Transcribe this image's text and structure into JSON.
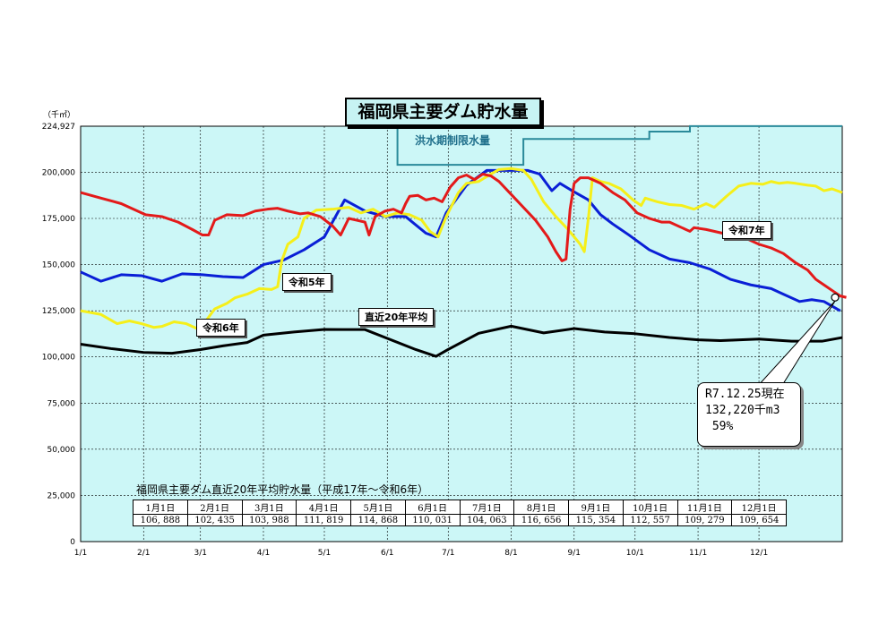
{
  "title": "福岡県主要ダム貯水量",
  "unit_label": "（千㎥）",
  "flood_label": "洪水期制限水量",
  "series_labels": {
    "r7": "令和7年",
    "r5": "令和5年",
    "r6": "令和6年",
    "avg": "直近20年平均"
  },
  "callout": {
    "line1": "R7.12.25現在",
    "line2": "132,220千m3",
    "line3": " 59%"
  },
  "avg_table": {
    "title": "福岡県主要ダム直近20年平均貯水量（平成17年～令和6年）",
    "headers": [
      "1月1日",
      "2月1日",
      "3月1日",
      "4月1日",
      "5月1日",
      "6月1日",
      "7月1日",
      "8月1日",
      "9月1日",
      "10月1日",
      "11月1日",
      "12月1日"
    ],
    "values": [
      "106, 888",
      "102, 435",
      "103, 988",
      "111, 819",
      "114, 868",
      "110, 031",
      "104, 063",
      "116, 656",
      "115, 354",
      "112, 557",
      "109, 279",
      "109, 654"
    ]
  },
  "chart_data": {
    "type": "line",
    "title": "福岡県主要ダム貯水量",
    "ylabel": "（千㎥）",
    "ylim": [
      0,
      224927
    ],
    "y_ticks": [
      "0",
      "25,000",
      "50,000",
      "75,000",
      "100,000",
      "125,000",
      "150,000",
      "175,000",
      "200,000",
      "224,927"
    ],
    "y_tick_values": [
      0,
      25000,
      50000,
      75000,
      100000,
      125000,
      150000,
      175000,
      200000,
      224927
    ],
    "x_ticks": [
      "1/1",
      "2/1",
      "3/1",
      "4/1",
      "5/1",
      "6/1",
      "7/1",
      "8/1",
      "9/1",
      "10/1",
      "11/1",
      "12/1"
    ],
    "x_tick_days": [
      0,
      31,
      59,
      90,
      120,
      151,
      181,
      212,
      243,
      273,
      304,
      334
    ],
    "xlim_days": [
      0,
      375
    ],
    "grid": true,
    "flood_limit": [
      [
        156,
        225000
      ],
      [
        156,
        204000
      ],
      [
        218,
        204000
      ],
      [
        218,
        218000
      ],
      [
        280,
        218000
      ],
      [
        280,
        222000
      ],
      [
        300,
        222000
      ],
      [
        300,
        225000
      ],
      [
        375,
        225000
      ]
    ],
    "series": [
      {
        "name": "令和7年",
        "color": "#e31a1a",
        "points": [
          [
            0,
            189000
          ],
          [
            10,
            186000
          ],
          [
            20,
            183000
          ],
          [
            28,
            179000
          ],
          [
            32,
            177000
          ],
          [
            40,
            176000
          ],
          [
            48,
            173000
          ],
          [
            55,
            169000
          ],
          [
            60,
            166000
          ],
          [
            63,
            166000
          ],
          [
            66,
            174000
          ],
          [
            72,
            177000
          ],
          [
            80,
            176500
          ],
          [
            86,
            179000
          ],
          [
            92,
            180000
          ],
          [
            97,
            180500
          ],
          [
            102,
            179000
          ],
          [
            108,
            177500
          ],
          [
            112,
            178000
          ],
          [
            118,
            176000
          ],
          [
            124,
            171000
          ],
          [
            128,
            166000
          ],
          [
            132,
            175000
          ],
          [
            136,
            174000
          ],
          [
            140,
            173000
          ],
          [
            142,
            166000
          ],
          [
            145,
            176000
          ],
          [
            150,
            179000
          ],
          [
            154,
            180000
          ],
          [
            158,
            178000
          ],
          [
            160,
            183000
          ],
          [
            162,
            187000
          ],
          [
            166,
            187500
          ],
          [
            170,
            185000
          ],
          [
            174,
            186000
          ],
          [
            178,
            184000
          ],
          [
            182,
            192000
          ],
          [
            186,
            197000
          ],
          [
            190,
            198500
          ],
          [
            194,
            196000
          ],
          [
            198,
            199000
          ],
          [
            202,
            198000
          ],
          [
            206,
            195000
          ],
          [
            212,
            188000
          ],
          [
            218,
            181000
          ],
          [
            224,
            174000
          ],
          [
            230,
            165000
          ],
          [
            234,
            157000
          ],
          [
            237,
            152000
          ],
          [
            239,
            153000
          ],
          [
            241,
            180000
          ],
          [
            243,
            194000
          ],
          [
            246,
            197000
          ],
          [
            250,
            197000
          ],
          [
            256,
            194000
          ],
          [
            262,
            189000
          ],
          [
            268,
            185000
          ],
          [
            274,
            178000
          ],
          [
            280,
            175000
          ],
          [
            286,
            173000
          ],
          [
            290,
            173000
          ],
          [
            296,
            170000
          ],
          [
            300,
            168000
          ],
          [
            302,
            170000
          ],
          [
            308,
            169000
          ],
          [
            316,
            167000
          ],
          [
            322,
            165500
          ],
          [
            328,
            164000
          ],
          [
            334,
            161000
          ],
          [
            340,
            159000
          ],
          [
            346,
            156000
          ],
          [
            352,
            151000
          ],
          [
            358,
            147000
          ],
          [
            362,
            142000
          ],
          [
            366,
            139000
          ],
          [
            370,
            136000
          ],
          [
            374,
            133000
          ],
          [
            377,
            132220
          ]
        ]
      },
      {
        "name": "令和5年",
        "color": "#0a1fd6",
        "points": [
          [
            0,
            146000
          ],
          [
            10,
            141000
          ],
          [
            20,
            144500
          ],
          [
            30,
            144000
          ],
          [
            40,
            141000
          ],
          [
            50,
            145000
          ],
          [
            60,
            144500
          ],
          [
            70,
            143500
          ],
          [
            80,
            143000
          ],
          [
            90,
            150000
          ],
          [
            100,
            152500
          ],
          [
            110,
            158000
          ],
          [
            120,
            165000
          ],
          [
            130,
            185000
          ],
          [
            140,
            179000
          ],
          [
            150,
            176000
          ],
          [
            160,
            176000
          ],
          [
            170,
            167000
          ],
          [
            175,
            165000
          ],
          [
            180,
            178000
          ],
          [
            190,
            193000
          ],
          [
            200,
            201000
          ],
          [
            210,
            201000
          ],
          [
            220,
            201000
          ],
          [
            226,
            199000
          ],
          [
            232,
            190000
          ],
          [
            236,
            194000
          ],
          [
            242,
            190000
          ],
          [
            250,
            185000
          ],
          [
            256,
            177000
          ],
          [
            262,
            172000
          ],
          [
            270,
            166000
          ],
          [
            280,
            158000
          ],
          [
            290,
            153000
          ],
          [
            300,
            151000
          ],
          [
            310,
            147500
          ],
          [
            320,
            142000
          ],
          [
            330,
            139000
          ],
          [
            340,
            137000
          ],
          [
            346,
            134000
          ],
          [
            354,
            130000
          ],
          [
            360,
            131000
          ],
          [
            366,
            130000
          ],
          [
            374,
            125000
          ]
        ]
      },
      {
        "name": "令和6年",
        "color": "#f5ef1a",
        "points": [
          [
            0,
            125000
          ],
          [
            10,
            123000
          ],
          [
            18,
            118000
          ],
          [
            24,
            119500
          ],
          [
            30,
            118000
          ],
          [
            36,
            116000
          ],
          [
            40,
            116500
          ],
          [
            46,
            119000
          ],
          [
            52,
            118000
          ],
          [
            58,
            115000
          ],
          [
            60,
            115000
          ],
          [
            62,
            120000
          ],
          [
            66,
            126000
          ],
          [
            72,
            129000
          ],
          [
            76,
            132000
          ],
          [
            82,
            134000
          ],
          [
            88,
            137000
          ],
          [
            94,
            136500
          ],
          [
            97,
            138000
          ],
          [
            99,
            152000
          ],
          [
            102,
            161000
          ],
          [
            107,
            165000
          ],
          [
            110,
            175000
          ],
          [
            116,
            179500
          ],
          [
            124,
            180000
          ],
          [
            132,
            181000
          ],
          [
            138,
            178000
          ],
          [
            144,
            180000
          ],
          [
            150,
            176000
          ],
          [
            156,
            178000
          ],
          [
            162,
            177000
          ],
          [
            168,
            174000
          ],
          [
            172,
            168000
          ],
          [
            176,
            165000
          ],
          [
            180,
            176000
          ],
          [
            186,
            189000
          ],
          [
            190,
            194000
          ],
          [
            196,
            195000
          ],
          [
            202,
            199000
          ],
          [
            206,
            201500
          ],
          [
            212,
            202000
          ],
          [
            218,
            201000
          ],
          [
            222,
            196000
          ],
          [
            228,
            184000
          ],
          [
            234,
            176000
          ],
          [
            240,
            169000
          ],
          [
            246,
            161000
          ],
          [
            248,
            157000
          ],
          [
            250,
            175000
          ],
          [
            252,
            197000
          ],
          [
            256,
            195000
          ],
          [
            260,
            194000
          ],
          [
            266,
            191000
          ],
          [
            272,
            185000
          ],
          [
            276,
            182000
          ],
          [
            278,
            186000
          ],
          [
            284,
            184000
          ],
          [
            290,
            182500
          ],
          [
            296,
            182000
          ],
          [
            302,
            180000
          ],
          [
            308,
            183000
          ],
          [
            312,
            181000
          ],
          [
            318,
            187000
          ],
          [
            324,
            192500
          ],
          [
            330,
            194000
          ],
          [
            336,
            193500
          ],
          [
            340,
            195000
          ],
          [
            344,
            194000
          ],
          [
            348,
            194500
          ],
          [
            352,
            194000
          ],
          [
            358,
            193000
          ],
          [
            362,
            192500
          ],
          [
            366,
            190000
          ],
          [
            370,
            191000
          ],
          [
            375,
            189000
          ]
        ]
      },
      {
        "name": "直近20年平均",
        "color": "#000000",
        "points": [
          [
            0,
            106888
          ],
          [
            15,
            104500
          ],
          [
            31,
            102435
          ],
          [
            45,
            102000
          ],
          [
            59,
            103988
          ],
          [
            70,
            106000
          ],
          [
            82,
            107800
          ],
          [
            90,
            111819
          ],
          [
            105,
            113500
          ],
          [
            120,
            114868
          ],
          [
            140,
            114800
          ],
          [
            151,
            110031
          ],
          [
            165,
            104000
          ],
          [
            175,
            100300
          ],
          [
            181,
            104063
          ],
          [
            196,
            112800
          ],
          [
            212,
            116656
          ],
          [
            228,
            113000
          ],
          [
            243,
            115354
          ],
          [
            258,
            113500
          ],
          [
            273,
            112557
          ],
          [
            290,
            110500
          ],
          [
            304,
            109279
          ],
          [
            315,
            108800
          ],
          [
            334,
            109654
          ],
          [
            350,
            108500
          ],
          [
            365,
            108500
          ],
          [
            375,
            110500
          ]
        ]
      }
    ],
    "current_point": {
      "day": 377,
      "value": 132220
    }
  }
}
